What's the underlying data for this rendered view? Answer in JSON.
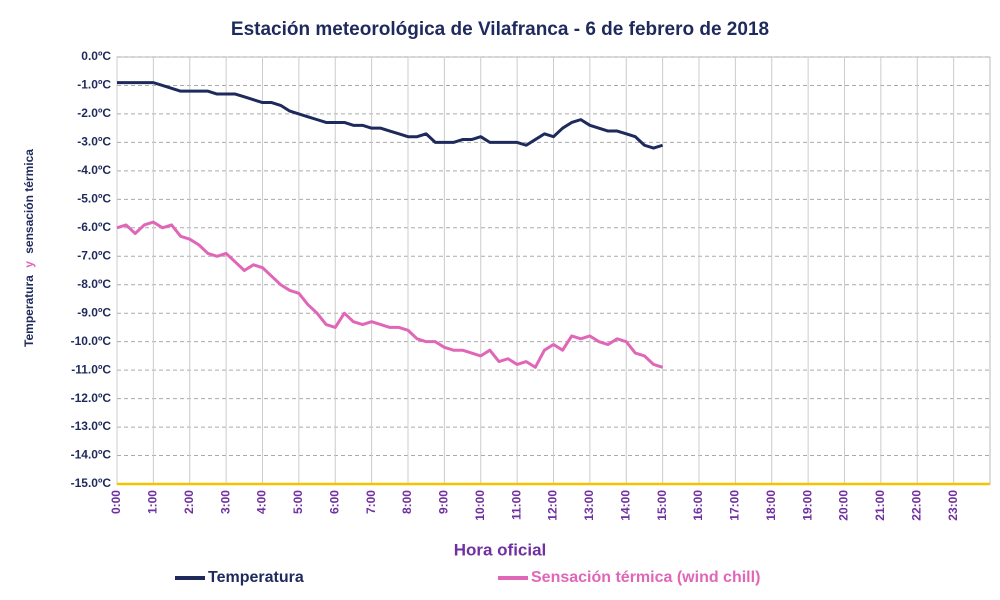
{
  "chart_data": {
    "type": "line",
    "title": "Estación meteorológica de Vilafranca - 6 de febrero de 2018",
    "x_label": "Hora oficial",
    "y_label_parts": [
      "Temperatura",
      "y",
      "sensación térmica"
    ],
    "grid": true,
    "xlim": [
      0,
      24
    ],
    "ylim": [
      -15,
      0
    ],
    "xticks": [
      {
        "value": 0,
        "label": "0:00"
      },
      {
        "value": 1,
        "label": "1:00"
      },
      {
        "value": 2,
        "label": "2:00"
      },
      {
        "value": 3,
        "label": "3:00"
      },
      {
        "value": 4,
        "label": "4:00"
      },
      {
        "value": 5,
        "label": "5:00"
      },
      {
        "value": 6,
        "label": "6:00"
      },
      {
        "value": 7,
        "label": "7:00"
      },
      {
        "value": 8,
        "label": "8:00"
      },
      {
        "value": 9,
        "label": "9:00"
      },
      {
        "value": 10,
        "label": "10:00"
      },
      {
        "value": 11,
        "label": "11:00"
      },
      {
        "value": 12,
        "label": "12:00"
      },
      {
        "value": 13,
        "label": "13:00"
      },
      {
        "value": 14,
        "label": "14:00"
      },
      {
        "value": 15,
        "label": "15:00"
      },
      {
        "value": 16,
        "label": "16:00"
      },
      {
        "value": 17,
        "label": "17:00"
      },
      {
        "value": 18,
        "label": "18:00"
      },
      {
        "value": 19,
        "label": "19:00"
      },
      {
        "value": 20,
        "label": "20:00"
      },
      {
        "value": 21,
        "label": "21:00"
      },
      {
        "value": 22,
        "label": "22:00"
      },
      {
        "value": 23,
        "label": "23:00"
      }
    ],
    "yticks": [
      {
        "value": 0,
        "label": "0.0ºC"
      },
      {
        "value": -1,
        "label": "-1.0ºC"
      },
      {
        "value": -2,
        "label": "-2.0ºC"
      },
      {
        "value": -3,
        "label": "-3.0ºC"
      },
      {
        "value": -4,
        "label": "-4.0ºC"
      },
      {
        "value": -5,
        "label": "-5.0ºC"
      },
      {
        "value": -6,
        "label": "-6.0ºC"
      },
      {
        "value": -7,
        "label": "-7.0ºC"
      },
      {
        "value": -8,
        "label": "-8.0ºC"
      },
      {
        "value": -9,
        "label": "-9.0ºC"
      },
      {
        "value": -10,
        "label": "-10.0ºC"
      },
      {
        "value": -11,
        "label": "-11.0ºC"
      },
      {
        "value": -12,
        "label": "-12.0ºC"
      },
      {
        "value": -13,
        "label": "-13.0ºC"
      },
      {
        "value": -14,
        "label": "-14.0ºC"
      },
      {
        "value": -15,
        "label": "-15.0ºC"
      }
    ],
    "x": [
      0,
      0.25,
      0.5,
      0.75,
      1,
      1.25,
      1.5,
      1.75,
      2,
      2.25,
      2.5,
      2.75,
      3,
      3.25,
      3.5,
      3.75,
      4,
      4.25,
      4.5,
      4.75,
      5,
      5.25,
      5.5,
      5.75,
      6,
      6.25,
      6.5,
      6.75,
      7,
      7.25,
      7.5,
      7.75,
      8,
      8.25,
      8.5,
      8.75,
      9,
      9.25,
      9.5,
      9.75,
      10,
      10.25,
      10.5,
      10.75,
      11,
      11.25,
      11.5,
      11.75,
      12,
      12.25,
      12.5,
      12.75,
      13,
      13.25,
      13.5,
      13.75,
      14,
      14.25,
      14.5,
      14.75,
      15
    ],
    "series": [
      {
        "name": "Temperatura",
        "color": "#1f2a5c",
        "values": [
          -0.9,
          -0.9,
          -0.9,
          -0.9,
          -0.9,
          -1.0,
          -1.1,
          -1.2,
          -1.2,
          -1.2,
          -1.2,
          -1.3,
          -1.3,
          -1.3,
          -1.4,
          -1.5,
          -1.6,
          -1.6,
          -1.7,
          -1.9,
          -2.0,
          -2.1,
          -2.2,
          -2.3,
          -2.3,
          -2.3,
          -2.4,
          -2.4,
          -2.5,
          -2.5,
          -2.6,
          -2.7,
          -2.8,
          -2.8,
          -2.7,
          -3.0,
          -3.0,
          -3.0,
          -2.9,
          -2.9,
          -2.8,
          -3.0,
          -3.0,
          -3.0,
          -3.0,
          -3.1,
          -2.9,
          -2.7,
          -2.8,
          -2.5,
          -2.3,
          -2.2,
          -2.4,
          -2.5,
          -2.6,
          -2.6,
          -2.7,
          -2.8,
          -3.1,
          -3.2,
          -3.1
        ]
      },
      {
        "name": "Sensación térmica (wind chill)",
        "color": "#e066b8",
        "values": [
          -6.0,
          -5.9,
          -6.2,
          -5.9,
          -5.8,
          -6.0,
          -5.9,
          -6.3,
          -6.4,
          -6.6,
          -6.9,
          -7.0,
          -6.9,
          -7.2,
          -7.5,
          -7.3,
          -7.4,
          -7.7,
          -8.0,
          -8.2,
          -8.3,
          -8.7,
          -9.0,
          -9.4,
          -9.5,
          -9.0,
          -9.3,
          -9.4,
          -9.3,
          -9.4,
          -9.5,
          -9.5,
          -9.6,
          -9.9,
          -10.0,
          -10.0,
          -10.2,
          -10.3,
          -10.3,
          -10.4,
          -10.5,
          -10.3,
          -10.7,
          -10.6,
          -10.8,
          -10.7,
          -10.9,
          -10.3,
          -10.1,
          -10.3,
          -9.8,
          -9.9,
          -9.8,
          -10.0,
          -10.1,
          -9.9,
          -10.0,
          -10.4,
          -10.5,
          -10.8,
          -10.9
        ]
      }
    ]
  }
}
